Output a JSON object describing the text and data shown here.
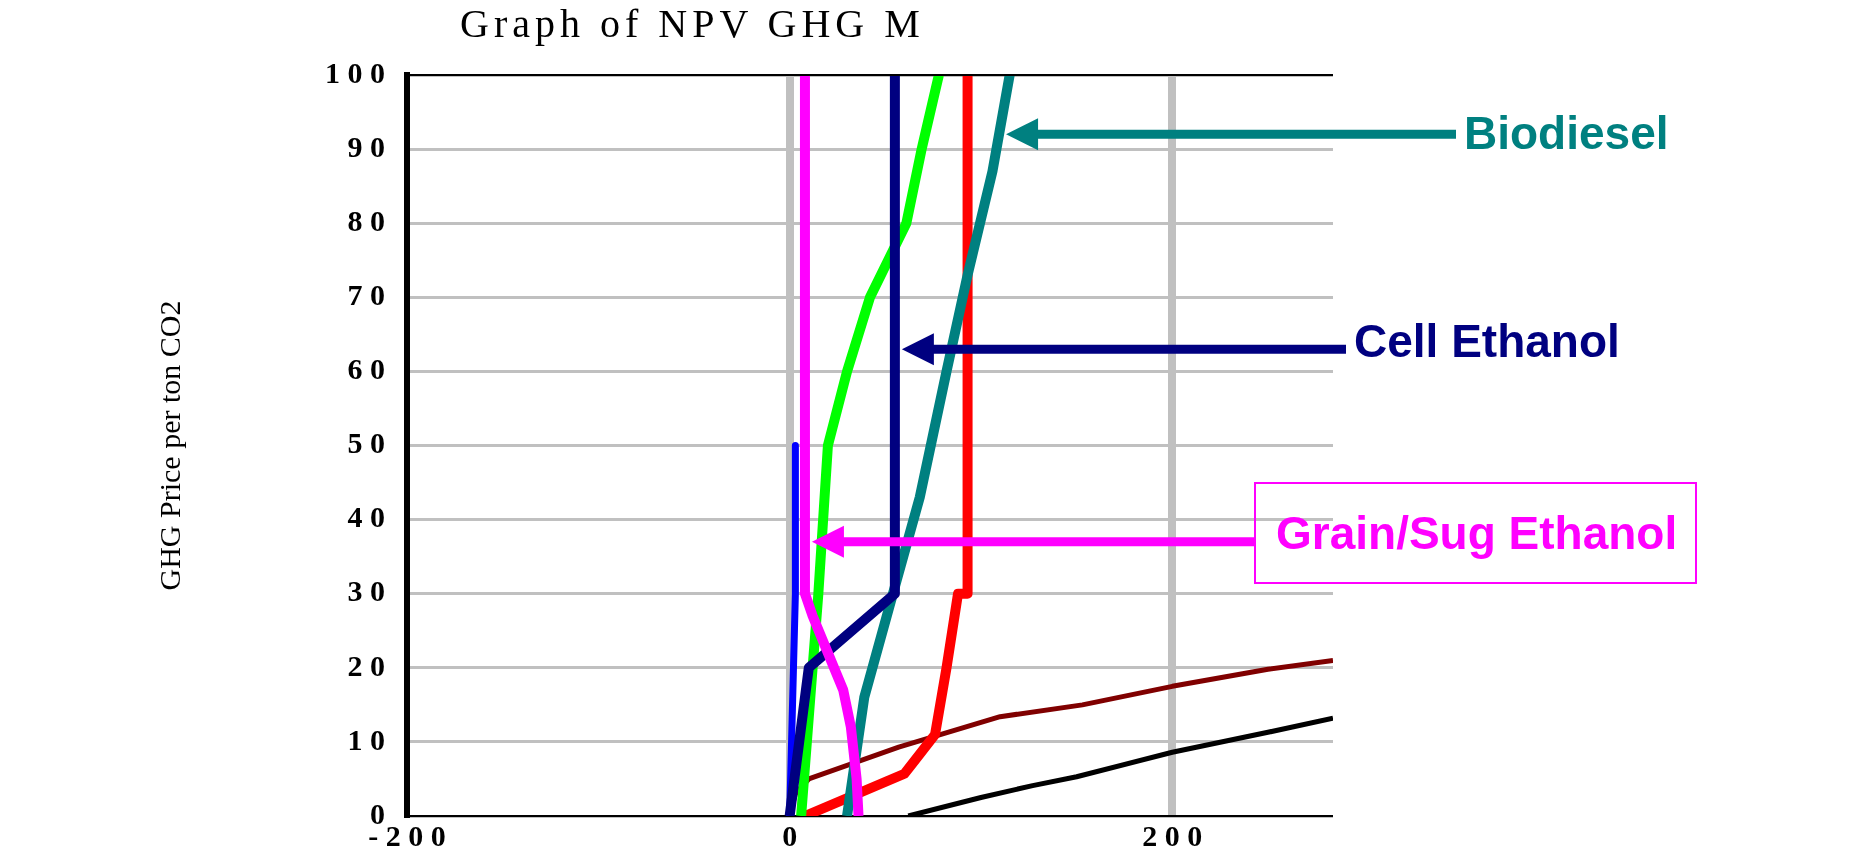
{
  "chart_data": {
    "type": "line",
    "title": "Graph of NPV GHG M",
    "ylabel": "GHG Price per ton CO2",
    "xlim": [
      -200,
      284
    ],
    "xticks": [
      -200,
      0,
      200
    ],
    "ylim": [
      0,
      100
    ],
    "yticks": [
      0,
      10,
      20,
      30,
      40,
      50,
      60,
      70,
      80,
      90,
      100
    ],
    "grid": true,
    "legend": false,
    "marker": "none",
    "line_style": "solid",
    "series": [
      {
        "name": "Grain/Sug Ethanol",
        "color": "#ff00ff",
        "x": [
          8,
          8,
          12,
          20,
          28,
          32,
          35,
          36
        ],
        "values": [
          100,
          30,
          27,
          22,
          17,
          12,
          5,
          0
        ]
      },
      {
        "name": "Cell Ethanol",
        "color": "#000080",
        "x": [
          55,
          55,
          10,
          5,
          0
        ],
        "values": [
          100,
          30,
          20,
          10,
          0
        ]
      },
      {
        "name": "Biodiesel",
        "color": "#008080",
        "x": [
          115,
          106,
          93,
          82,
          68,
          54,
          39,
          30
        ],
        "values": [
          100,
          87,
          73,
          60,
          43,
          30,
          16,
          0
        ]
      },
      {
        "color": "#0000ff",
        "x": [
          3,
          3,
          2,
          0
        ],
        "values": [
          50,
          30,
          20,
          0
        ]
      },
      {
        "color": "#00ff00",
        "x": [
          78,
          69,
          61,
          42,
          30,
          20,
          15,
          6
        ],
        "values": [
          100,
          90,
          80,
          70,
          60,
          50,
          30,
          0
        ]
      },
      {
        "color": "#ff0000",
        "x": [
          93,
          93,
          88,
          82,
          76,
          60,
          8
        ],
        "values": [
          100,
          30,
          30,
          20,
          11,
          5.7,
          0
        ]
      },
      {
        "color": "#800000",
        "x": [
          0,
          3,
          10,
          57,
          110,
          153,
          200,
          250,
          284
        ],
        "values": [
          0,
          3,
          5,
          9.3,
          13.4,
          15,
          17.5,
          19.8,
          21
        ]
      },
      {
        "color": "#000000",
        "x": [
          62,
          100,
          127,
          150,
          200,
          250,
          284
        ],
        "values": [
          0,
          2.5,
          4.1,
          5.3,
          8.6,
          11.3,
          13.2
        ]
      }
    ]
  }
}
